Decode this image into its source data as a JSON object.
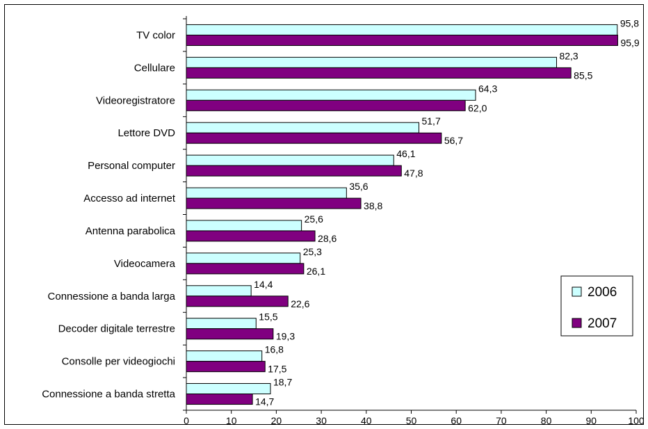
{
  "chart_data": {
    "type": "bar",
    "orientation": "horizontal",
    "categories": [
      "TV color",
      "Cellulare",
      "Videoregistratore",
      "Lettore DVD",
      "Personal computer",
      "Accesso ad internet",
      "Antenna parabolica",
      "Videocamera",
      "Connessione a banda larga",
      "Decoder digitale terrestre",
      "Consolle per videogiochi",
      "Connessione a banda stretta"
    ],
    "series": [
      {
        "name": "2006",
        "color": "#CCFFFF",
        "values": [
          95.8,
          82.3,
          64.3,
          51.7,
          46.1,
          35.6,
          25.6,
          25.3,
          14.4,
          15.5,
          16.8,
          18.7
        ],
        "labels": [
          "95,8",
          "82,3",
          "64,3",
          "51,7",
          "46,1",
          "35,6",
          "25,6",
          "25,3",
          "14,4",
          "15,5",
          "16,8",
          "18,7"
        ]
      },
      {
        "name": "2007",
        "color": "#800080",
        "values": [
          95.9,
          85.5,
          62.0,
          56.7,
          47.8,
          38.8,
          28.6,
          26.1,
          22.6,
          19.3,
          17.5,
          14.7
        ],
        "labels": [
          "95,9",
          "85,5",
          "62,0",
          "56,7",
          "47,8",
          "38,8",
          "28,6",
          "26,1",
          "22,6",
          "19,3",
          "17,5",
          "14,7"
        ]
      }
    ],
    "xlim": [
      0,
      100
    ],
    "xticks": [
      0,
      10,
      20,
      30,
      40,
      50,
      60,
      70,
      80,
      90,
      100
    ],
    "xtick_labels": [
      "0",
      "10",
      "20",
      "30",
      "40",
      "50",
      "60",
      "70",
      "80",
      "90",
      "100"
    ],
    "title": "",
    "xlabel": "",
    "ylabel": "",
    "grid": false,
    "legend_position": "right"
  }
}
